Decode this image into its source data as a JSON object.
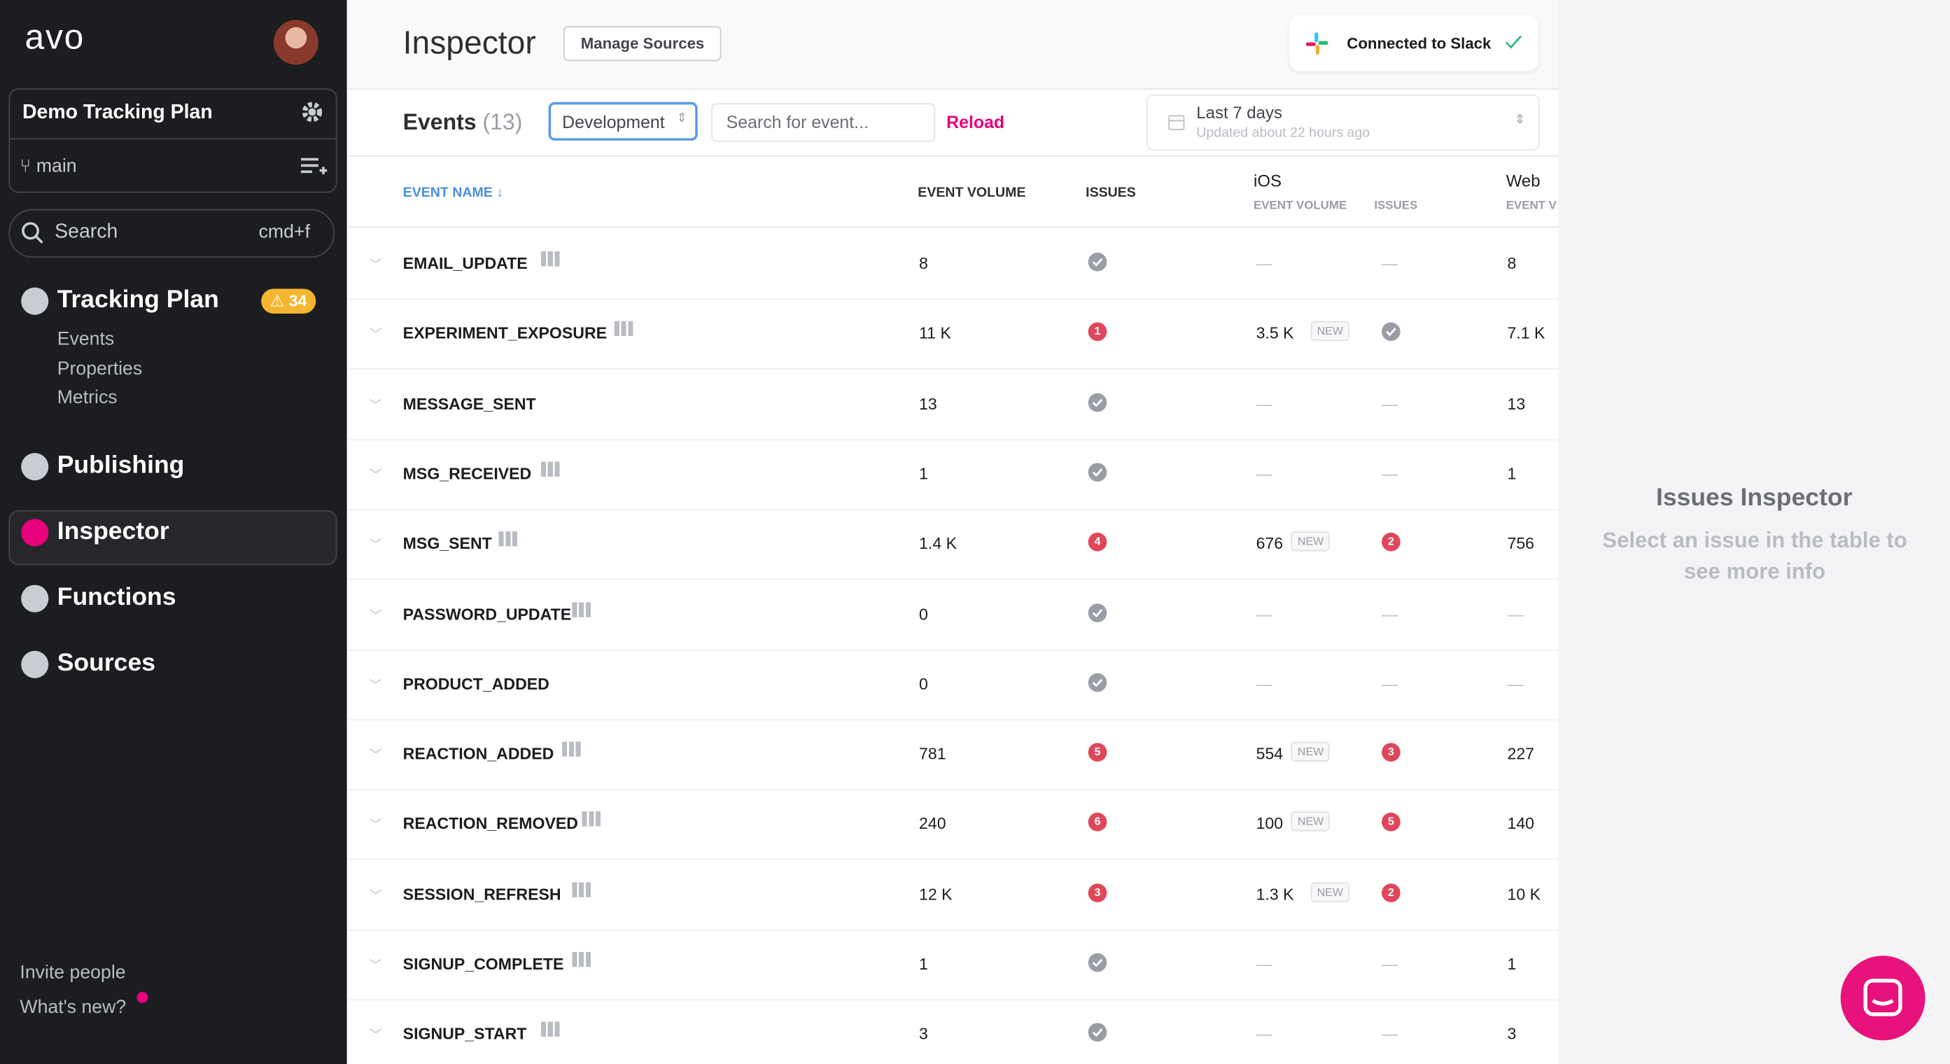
{
  "sidebar": {
    "logo": "avo",
    "workspace": "Demo Tracking Plan",
    "branch": "main",
    "search": "Search",
    "shortcut": "cmd+f",
    "nav": [
      {
        "label": "Tracking Plan",
        "badge": "34",
        "children": [
          "Events",
          "Properties",
          "Metrics"
        ]
      },
      {
        "label": "Publishing"
      },
      {
        "label": "Inspector"
      },
      {
        "label": "Functions"
      },
      {
        "label": "Sources"
      }
    ],
    "footer": [
      "Invite people",
      "What's new?"
    ]
  },
  "header": {
    "title": "Inspector",
    "button": "Manage Sources",
    "integration": "Connected to Slack"
  },
  "toolbar": {
    "title": "Events",
    "count": "(13)",
    "environment": "Development",
    "search_placeholder": "Search for event...",
    "reload": "Reload",
    "date_range": "Last 7 days",
    "updated": "Updated about 22 hours ago"
  },
  "table": {
    "columns": {
      "name": "EVENT NAME",
      "volume": "EVENT VOLUME",
      "issues": "ISSUES",
      "ios": "iOS",
      "ios_volume": "EVENT VOLUME",
      "ios_issues": "ISSUES",
      "web": "Web",
      "web_volume": "EVENT V"
    },
    "rows": [
      {
        "name": "EMAIL_UPDATE",
        "doc": true,
        "volume": "8",
        "issues": null,
        "ios_volume": "—",
        "ios_badge": null,
        "ios_issues": "—",
        "web_volume": "8"
      },
      {
        "name": "EXPERIMENT_EXPOSURE",
        "doc": true,
        "volume": "11 K",
        "issues": 1,
        "ios_volume": "3.5 K",
        "ios_badge": "NEW",
        "ios_issues": null,
        "web_volume": "7.1 K"
      },
      {
        "name": "MESSAGE_SENT",
        "doc": false,
        "volume": "13",
        "issues": null,
        "ios_volume": "—",
        "ios_badge": null,
        "ios_issues": "—",
        "web_volume": "13"
      },
      {
        "name": "MSG_RECEIVED",
        "doc": true,
        "volume": "1",
        "issues": null,
        "ios_volume": "—",
        "ios_badge": null,
        "ios_issues": "—",
        "web_volume": "1"
      },
      {
        "name": "MSG_SENT",
        "doc": true,
        "volume": "1.4 K",
        "issues": 4,
        "ios_volume": "676",
        "ios_badge": "NEW",
        "ios_issues": 2,
        "web_volume": "756"
      },
      {
        "name": "PASSWORD_UPDATE",
        "doc": true,
        "volume": "0",
        "issues": null,
        "ios_volume": "—",
        "ios_badge": null,
        "ios_issues": "—",
        "web_volume": "—"
      },
      {
        "name": "PRODUCT_ADDED",
        "doc": false,
        "volume": "0",
        "issues": null,
        "ios_volume": "—",
        "ios_badge": null,
        "ios_issues": "—",
        "web_volume": "—"
      },
      {
        "name": "REACTION_ADDED",
        "doc": true,
        "volume": "781",
        "issues": 5,
        "ios_volume": "554",
        "ios_badge": "NEW",
        "ios_issues": 3,
        "web_volume": "227"
      },
      {
        "name": "REACTION_REMOVED",
        "doc": true,
        "volume": "240",
        "issues": 6,
        "ios_volume": "100",
        "ios_badge": "NEW",
        "ios_issues": 5,
        "web_volume": "140"
      },
      {
        "name": "SESSION_REFRESH",
        "doc": true,
        "volume": "12 K",
        "issues": 3,
        "ios_volume": "1.3 K",
        "ios_badge": "NEW",
        "ios_issues": 2,
        "web_volume": "10 K"
      },
      {
        "name": "SIGNUP_COMPLETE",
        "doc": true,
        "volume": "1",
        "issues": null,
        "ios_volume": "—",
        "ios_badge": null,
        "ios_issues": "—",
        "web_volume": "1"
      },
      {
        "name": "SIGNUP_START",
        "doc": true,
        "volume": "3",
        "issues": null,
        "ios_volume": "—",
        "ios_badge": null,
        "ios_issues": "—",
        "web_volume": "3"
      }
    ]
  },
  "panel": {
    "title": "Issues Inspector",
    "hint": "Select an issue in the table to see more info"
  }
}
